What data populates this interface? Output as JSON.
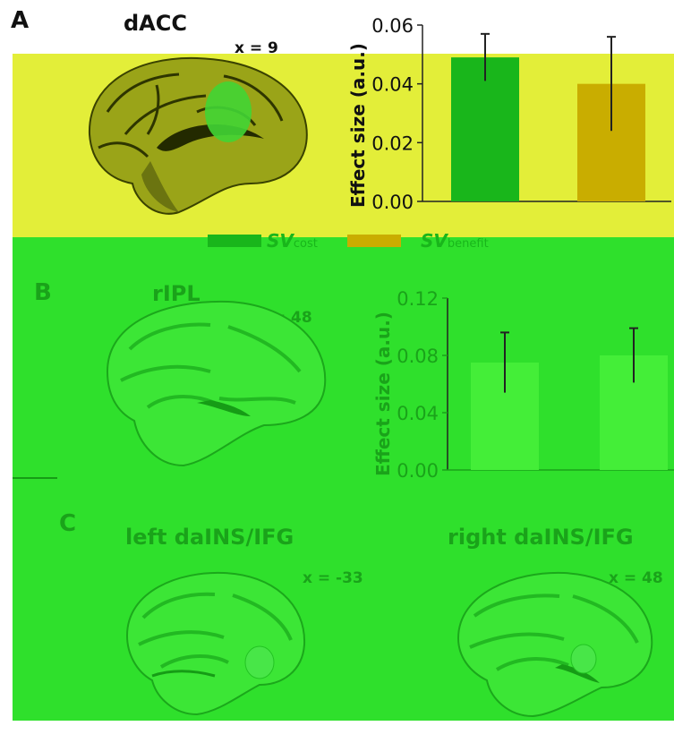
{
  "panels": {
    "A": {
      "letter": "A",
      "title": "dACC",
      "coord": "x = 9"
    },
    "B": {
      "letter": "B",
      "title": "rIPL",
      "coord": "x = 48"
    },
    "C": {
      "letter": "C",
      "left_title": "left daINS/IFG",
      "left_coord": "x = -33",
      "right_title": "right daINS/IFG",
      "right_coord": "x = 48"
    }
  },
  "legend": {
    "cost_label": "SV",
    "cost_sub": "cost",
    "cost_color": "#19b61b",
    "benefit_label": "SV",
    "benefit_sub": "benefit",
    "benefit_color": "#c9ad00"
  },
  "colors": {
    "panel_a_background": "#e3ee39",
    "panel_bc_background": "#2fe02c",
    "text_dark": "#111111",
    "text_green": "#1aa31a"
  },
  "chart_data": [
    {
      "type": "bar",
      "panel": "A",
      "categories": [
        "SVcost",
        "SVbenefit"
      ],
      "values": [
        0.049,
        0.04
      ],
      "errors": [
        0.008,
        0.016
      ],
      "colors": [
        "#19b61b",
        "#c9ad00"
      ],
      "ylabel": "Effect size (a.u.)",
      "ylim": [
        0,
        0.06
      ],
      "yticks": [
        "0.00",
        "0.02",
        "0.04",
        "0.06"
      ],
      "grid": false
    },
    {
      "type": "bar",
      "panel": "B",
      "categories": [
        "SVcost",
        "SVbenefit"
      ],
      "values": [
        0.075,
        0.08
      ],
      "errors": [
        0.021,
        0.019
      ],
      "colors": [
        "#44ee38",
        "#44ee38"
      ],
      "ylabel": "Effect size (a.u.)",
      "ylim": [
        0,
        0.12
      ],
      "yticks": [
        "0.00",
        "0.04",
        "0.08",
        "0.12"
      ],
      "grid": false
    }
  ]
}
